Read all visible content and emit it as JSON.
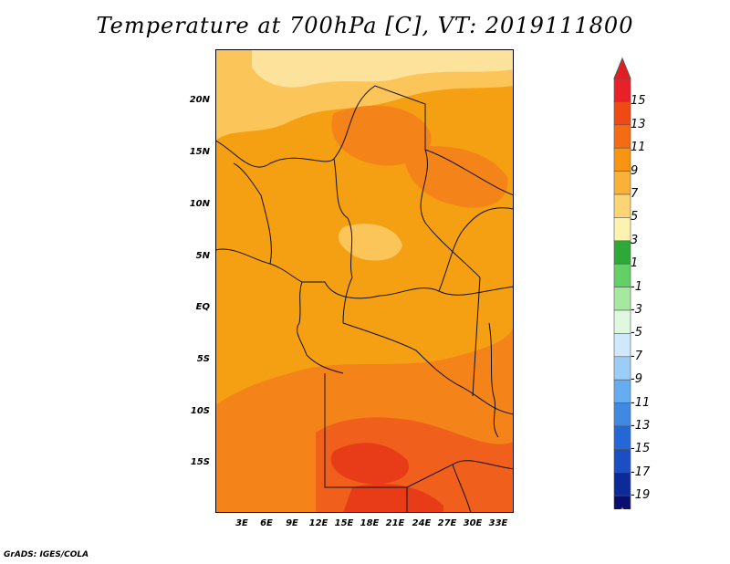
{
  "title": "Temperature at 700hPa [C], VT: 2019111800",
  "credit": "GrADS: IGES/COLA",
  "map": {
    "lat_ticks": [
      "20N",
      "15N",
      "10N",
      "5N",
      "EQ",
      "5S",
      "10S",
      "15S"
    ],
    "lon_ticks": [
      "3E",
      "6E",
      "9E",
      "12E",
      "15E",
      "18E",
      "21E",
      "24E",
      "27E",
      "30E",
      "33E"
    ]
  },
  "colorbar": {
    "labels": [
      "15",
      "13",
      "11",
      "9",
      "7",
      "5",
      "3",
      "1",
      "-1",
      "-3",
      "-5",
      "-7",
      "-9",
      "-11",
      "-13",
      "-15",
      "-17",
      "-19"
    ],
    "colors": [
      "#e8202a",
      "#f04a14",
      "#f46b14",
      "#f79511",
      "#fab13a",
      "#fbd474",
      "#fdf2b0",
      "#2ea838",
      "#62d066",
      "#a6e8a0",
      "#e0f8e0",
      "#cfe8fb",
      "#9ccdf7",
      "#66acf0",
      "#3f89e3",
      "#2368d6",
      "#1b4ec2",
      "#0d2a9a",
      "#0a0e6e"
    ],
    "max_cap_color": "#e02020",
    "min_cap_color": "#dcdcff"
  }
}
